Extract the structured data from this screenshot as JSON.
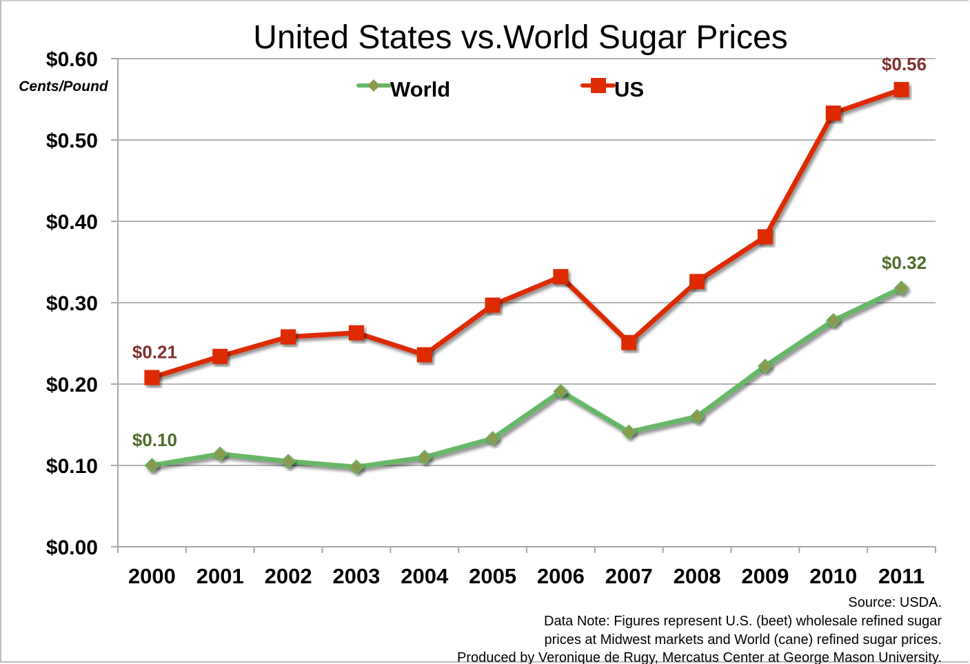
{
  "chart_data": {
    "type": "line",
    "title": "United States vs.World Sugar Prices",
    "xlabel": "",
    "ylabel": "Cents/Pound",
    "ylim": [
      0,
      0.6
    ],
    "yticks": [
      0,
      0.1,
      0.2,
      0.3,
      0.4,
      0.5,
      0.6
    ],
    "ytick_labels": [
      "$0.00",
      "$0.10",
      "$0.20",
      "$0.30",
      "$0.40",
      "$0.50",
      "$0.60"
    ],
    "grid": true,
    "legend": "top-center",
    "categories": [
      "2000",
      "2001",
      "2002",
      "2003",
      "2004",
      "2005",
      "2006",
      "2007",
      "2008",
      "2009",
      "2010",
      "2011"
    ],
    "series": [
      {
        "name": "World",
        "color": "#66b866",
        "marker": "diamond",
        "marker_color": "#8a9a4e",
        "label_color": "#4f6b2a",
        "values": [
          0.1,
          0.114,
          0.105,
          0.098,
          0.11,
          0.133,
          0.191,
          0.141,
          0.16,
          0.222,
          0.278,
          0.318
        ],
        "annotations": [
          {
            "index": 0,
            "text": "$0.10"
          },
          {
            "index": 11,
            "text": "$0.32"
          }
        ]
      },
      {
        "name": "US",
        "color": "#dd2c00",
        "marker": "square",
        "marker_color": "#dd2c00",
        "label_color": "#7f3030",
        "values": [
          0.208,
          0.234,
          0.258,
          0.263,
          0.236,
          0.297,
          0.332,
          0.251,
          0.326,
          0.381,
          0.533,
          0.562
        ],
        "annotations": [
          {
            "index": 0,
            "text": "$0.21"
          },
          {
            "index": 11,
            "text": "$0.56"
          }
        ]
      }
    ],
    "notes": [
      "Source: USDA.",
      "Data Note: Figures represent U.S. (beet) wholesale refined sugar",
      "prices at Midwest markets and World (cane) refined sugar  prices.",
      "Produced by Veronique de Rugy, Mercatus Center at George Mason University."
    ]
  }
}
